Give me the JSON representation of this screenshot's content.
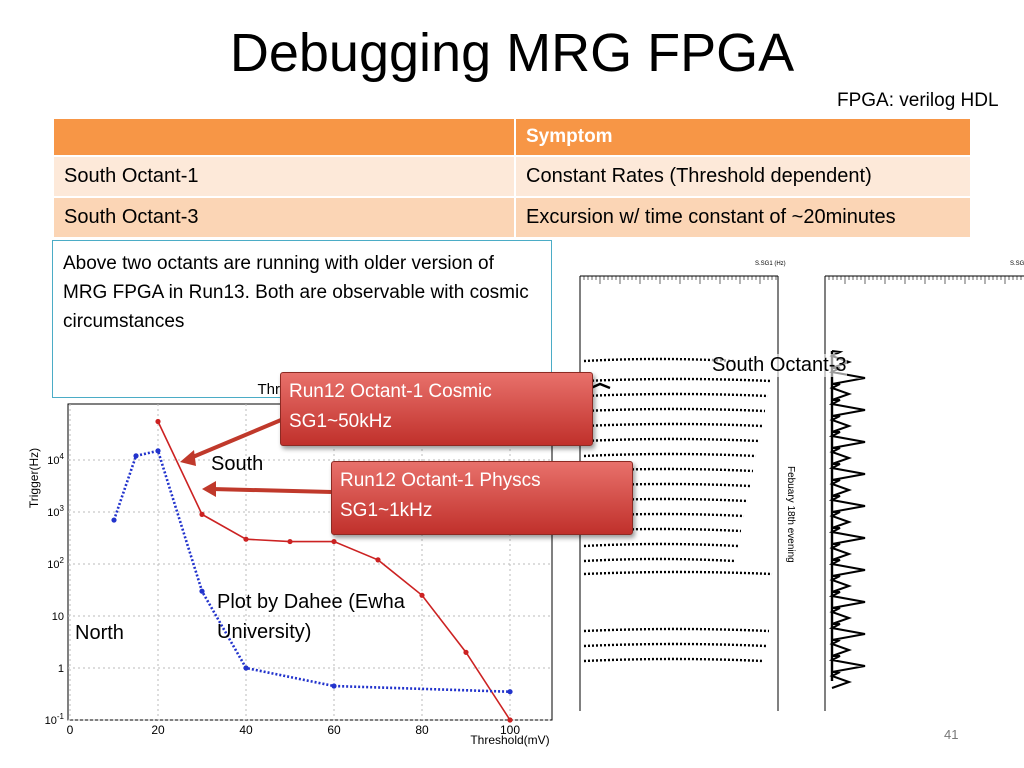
{
  "slide": {
    "title": "Debugging MRG FPGA",
    "fpga_note": "FPGA: verilog HDL",
    "page_number": "41"
  },
  "table": {
    "header": [
      "",
      "Symptom"
    ],
    "rows": [
      [
        "South Octant-1",
        "Constant Rates (Threshold dependent)"
      ],
      [
        "South Octant-3",
        "Excursion w/ time constant of ~20minutes"
      ]
    ]
  },
  "note_box": "Above two octants are running with older version of MRG FPGA in Run13. Both are observable with cosmic circumstances",
  "callouts": [
    {
      "line1": "Run12 Octant-1 Cosmic",
      "line2": "SG1~50kHz"
    },
    {
      "line1": "Run12 Octant-1 Physcs",
      "line2": "SG1~1kHz"
    }
  ],
  "labels": {
    "south": "South",
    "north": "North",
    "plot_credit_line1": "Plot by Dahee (Ewha",
    "plot_credit_line2": "University)",
    "south_octant3": "South Octant-3"
  },
  "chart_data": [
    {
      "type": "line",
      "title": "Threshold Scan",
      "xlabel": "Threshold(mV)",
      "ylabel": "Trigger(Hz)",
      "xlim": [
        0,
        100
      ],
      "ylim": [
        0.1,
        100000
      ],
      "y_scale": "log",
      "x_ticks": [
        "0",
        "20",
        "40",
        "60",
        "80",
        "100"
      ],
      "y_ticks": [
        "10^-1",
        "1",
        "10",
        "10^2",
        "10^3",
        "10^4"
      ],
      "grid": true,
      "series": [
        {
          "color": "#cc2222",
          "x": [
            20,
            30,
            40,
            50,
            60,
            70,
            80,
            90,
            100
          ],
          "y": [
            55000,
            900,
            300,
            270,
            270,
            120,
            25,
            2,
            0.1
          ]
        },
        {
          "color": "#2233cc",
          "x": [
            10,
            15,
            20,
            30,
            40,
            60,
            100
          ],
          "y": [
            700,
            12000,
            15000,
            30,
            1,
            0.45,
            0.35
          ]
        }
      ]
    },
    {
      "type": "line",
      "title": "S.SG1 (Hz)",
      "rotated_label": "Febuary 18th evening",
      "series": [
        {
          "name": "South Octant-3",
          "color": "#000000"
        }
      ]
    }
  ]
}
